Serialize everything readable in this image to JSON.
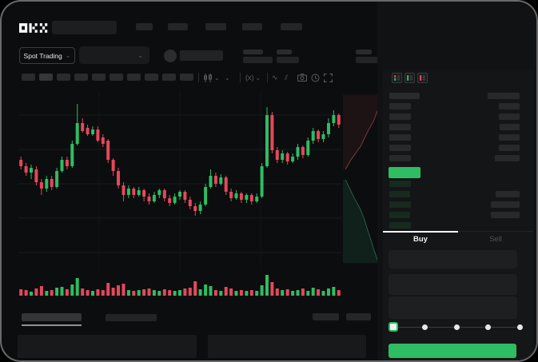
{
  "header": {
    "brand": "OKX",
    "market_selector_label": "Spot Trading"
  },
  "icons": {
    "chevron_down": "⌄",
    "wave": "∿",
    "compare": "⫽",
    "fx": "(x)"
  },
  "order_panel": {
    "buy_tab_label": "Buy",
    "sell_tab_label": "Sell",
    "slider_stops_percent": [
      0,
      25,
      50,
      75,
      100
    ],
    "slider_value_percent": 0
  },
  "colors": {
    "up_green": "#2ebd62",
    "down_red": "#e5485c",
    "last_price_bar": "#2ebd62",
    "submit_button": "#2ebd62",
    "grid_line": "#1a1b1e",
    "depth_ask_line": "#7a3b41",
    "depth_ask_fill": "#1d1214",
    "depth_bid_line": "#2b5c45",
    "depth_bid_fill": "#0f211a",
    "bid_row_tint": "#172a20",
    "book_bar_gray": "#28292b"
  },
  "chart_data": {
    "type": "candlestick",
    "title": "",
    "xlabel": "",
    "ylabel": "",
    "ylim": [
      0,
      100
    ],
    "grid": true,
    "candles_ohlc": [
      [
        62,
        64,
        56,
        58
      ],
      [
        58,
        60,
        52,
        54
      ],
      [
        54,
        59,
        50,
        57
      ],
      [
        56,
        58,
        46,
        48
      ],
      [
        48,
        50,
        40,
        44
      ],
      [
        44,
        52,
        42,
        50
      ],
      [
        50,
        52,
        43,
        45
      ],
      [
        45,
        57,
        44,
        55
      ],
      [
        55,
        64,
        54,
        62
      ],
      [
        62,
        64,
        56,
        58
      ],
      [
        58,
        74,
        57,
        72
      ],
      [
        72,
        97,
        71,
        85
      ],
      [
        85,
        88,
        79,
        80
      ],
      [
        82,
        84,
        77,
        78
      ],
      [
        78,
        83,
        77,
        81
      ],
      [
        81,
        83,
        73,
        74
      ],
      [
        76,
        78,
        70,
        72
      ],
      [
        74,
        75,
        60,
        62
      ],
      [
        62,
        63,
        52,
        55
      ],
      [
        55,
        57,
        44,
        46
      ],
      [
        46,
        48,
        36,
        40
      ],
      [
        40,
        46,
        38,
        44
      ],
      [
        44,
        45,
        38,
        40
      ],
      [
        40,
        45,
        39,
        43
      ],
      [
        43,
        44,
        36,
        39
      ],
      [
        39,
        41,
        34,
        36
      ],
      [
        36,
        42,
        35,
        40
      ],
      [
        40,
        44,
        38,
        43
      ],
      [
        43,
        44,
        36,
        38
      ],
      [
        38,
        40,
        33,
        35
      ],
      [
        35,
        41,
        34,
        39
      ],
      [
        39,
        43,
        37,
        42
      ],
      [
        42,
        43,
        35,
        37
      ],
      [
        37,
        39,
        31,
        33
      ],
      [
        33,
        35,
        27,
        30
      ],
      [
        30,
        36,
        28,
        34
      ],
      [
        34,
        47,
        33,
        45
      ],
      [
        45,
        56,
        44,
        52
      ],
      [
        52,
        54,
        45,
        47
      ],
      [
        47,
        53,
        46,
        51
      ],
      [
        51,
        52,
        40,
        42
      ],
      [
        42,
        44,
        36,
        38
      ],
      [
        38,
        43,
        37,
        41
      ],
      [
        41,
        42,
        35,
        37
      ],
      [
        37,
        41,
        35,
        40
      ],
      [
        40,
        41,
        34,
        36
      ],
      [
        36,
        41,
        35,
        39
      ],
      [
        39,
        60,
        38,
        58
      ],
      [
        58,
        95,
        57,
        90
      ],
      [
        90,
        92,
        66,
        68
      ],
      [
        68,
        70,
        60,
        62
      ],
      [
        62,
        68,
        60,
        66
      ],
      [
        66,
        67,
        59,
        61
      ],
      [
        61,
        66,
        60,
        64
      ],
      [
        64,
        72,
        62,
        70
      ],
      [
        70,
        71,
        63,
        65
      ],
      [
        65,
        76,
        64,
        74
      ],
      [
        74,
        82,
        72,
        80
      ],
      [
        80,
        81,
        73,
        75
      ],
      [
        75,
        80,
        73,
        78
      ],
      [
        78,
        88,
        76,
        85
      ],
      [
        85,
        93,
        83,
        90
      ],
      [
        90,
        91,
        82,
        84
      ]
    ],
    "volume": [
      8,
      7,
      5,
      9,
      12,
      6,
      7,
      10,
      11,
      8,
      14,
      22,
      9,
      7,
      6,
      8,
      7,
      16,
      10,
      13,
      15,
      7,
      6,
      7,
      8,
      9,
      7,
      6,
      8,
      7,
      6,
      7,
      9,
      10,
      18,
      8,
      14,
      12,
      7,
      6,
      11,
      9,
      6,
      7,
      6,
      7,
      6,
      13,
      26,
      17,
      9,
      7,
      8,
      6,
      7,
      9,
      6,
      10,
      8,
      6,
      9,
      11,
      7
    ],
    "depth": {
      "asks_line": [
        [
          0.92,
          0.02
        ],
        [
          0.88,
          0.07
        ],
        [
          0.8,
          0.12
        ],
        [
          0.72,
          0.17
        ],
        [
          0.6,
          0.22
        ],
        [
          0.5,
          0.27
        ],
        [
          0.42,
          0.31
        ],
        [
          0.3,
          0.35
        ],
        [
          0.18,
          0.39
        ],
        [
          0.06,
          0.44
        ]
      ],
      "bids_line": [
        [
          0.06,
          0.5
        ],
        [
          0.16,
          0.55
        ],
        [
          0.26,
          0.6
        ],
        [
          0.4,
          0.66
        ],
        [
          0.5,
          0.72
        ],
        [
          0.58,
          0.78
        ],
        [
          0.66,
          0.84
        ],
        [
          0.74,
          0.9
        ],
        [
          0.84,
          0.97
        ]
      ]
    },
    "order_book_rows": {
      "header": {
        "left_width": 38,
        "right_width": 40
      },
      "asks": [
        {
          "left_width": 27,
          "right_width": 26
        },
        {
          "left_width": 27,
          "right_width": 26
        },
        {
          "left_width": 27,
          "right_width": 25
        },
        {
          "left_width": 27,
          "right_width": 26
        },
        {
          "left_width": 27,
          "right_width": 26
        },
        {
          "left_width": 27,
          "right_width": 31
        }
      ],
      "bids": [
        {
          "left_width": 27,
          "right_width": 0
        },
        {
          "left_width": 26,
          "right_width": 30
        },
        {
          "left_width": 27,
          "right_width": 36
        },
        {
          "left_width": 26,
          "right_width": 36
        },
        {
          "left_width": 27,
          "right_width": 0
        }
      ]
    }
  }
}
